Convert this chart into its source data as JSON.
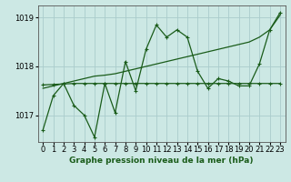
{
  "title": "Graphe pression niveau de la mer (hPa)",
  "bg_color": "#cce8e4",
  "grid_color": "#aacccc",
  "line_color": "#1a5c1a",
  "x_labels": [
    "0",
    "1",
    "2",
    "3",
    "4",
    "5",
    "6",
    "7",
    "8",
    "9",
    "10",
    "11",
    "12",
    "13",
    "14",
    "15",
    "16",
    "17",
    "18",
    "19",
    "20",
    "21",
    "22",
    "23"
  ],
  "x_data": [
    0,
    1,
    2,
    3,
    4,
    5,
    6,
    7,
    8,
    9,
    10,
    11,
    12,
    13,
    14,
    15,
    16,
    17,
    18,
    19,
    20,
    21,
    22,
    23
  ],
  "y_volatile": [
    1016.7,
    1017.4,
    1017.65,
    1017.2,
    1017.0,
    1016.55,
    1017.65,
    1017.05,
    1018.1,
    1017.5,
    1018.35,
    1018.85,
    1018.6,
    1018.75,
    1018.6,
    1017.9,
    1017.55,
    1017.75,
    1017.7,
    1017.6,
    1017.6,
    1018.05,
    1018.75,
    1019.1
  ],
  "y_smooth": [
    1017.62,
    1017.63,
    1017.64,
    1017.65,
    1017.65,
    1017.65,
    1017.65,
    1017.65,
    1017.65,
    1017.65,
    1017.65,
    1017.65,
    1017.65,
    1017.65,
    1017.65,
    1017.65,
    1017.65,
    1017.65,
    1017.65,
    1017.65,
    1017.65,
    1017.65,
    1017.65,
    1017.65
  ],
  "y_trend": [
    1017.55,
    1017.6,
    1017.65,
    1017.7,
    1017.75,
    1017.8,
    1017.82,
    1017.85,
    1017.9,
    1017.95,
    1018.0,
    1018.05,
    1018.1,
    1018.15,
    1018.2,
    1018.25,
    1018.3,
    1018.35,
    1018.4,
    1018.45,
    1018.5,
    1018.6,
    1018.75,
    1019.05
  ],
  "ylim": [
    1016.45,
    1019.25
  ],
  "yticks": [
    1017,
    1018,
    1019
  ],
  "ytick_labels": [
    "1017",
    "1018",
    "1019"
  ]
}
